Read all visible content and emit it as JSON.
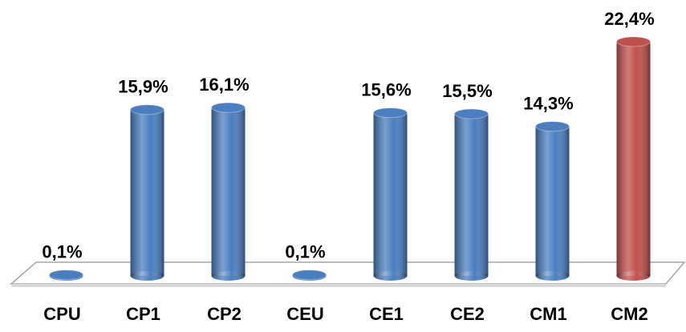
{
  "chart_data": {
    "type": "bar",
    "categories": [
      "CPU",
      "CP1",
      "CP2",
      "CEU",
      "CE1",
      "CE2",
      "CM1",
      "CM2"
    ],
    "values": [
      0.1,
      15.9,
      16.1,
      0.1,
      15.6,
      15.5,
      14.3,
      22.4
    ],
    "value_labels": [
      "0,1%",
      "15,9%",
      "16,1%",
      "0,1%",
      "15,6%",
      "15,5%",
      "14,3%",
      "22,4%"
    ],
    "colors": [
      "#4a7ebf",
      "#4a7ebf",
      "#4a7ebf",
      "#4a7ebf",
      "#4a7ebf",
      "#4a7ebf",
      "#4a7ebf",
      "#c0504d"
    ]
  }
}
